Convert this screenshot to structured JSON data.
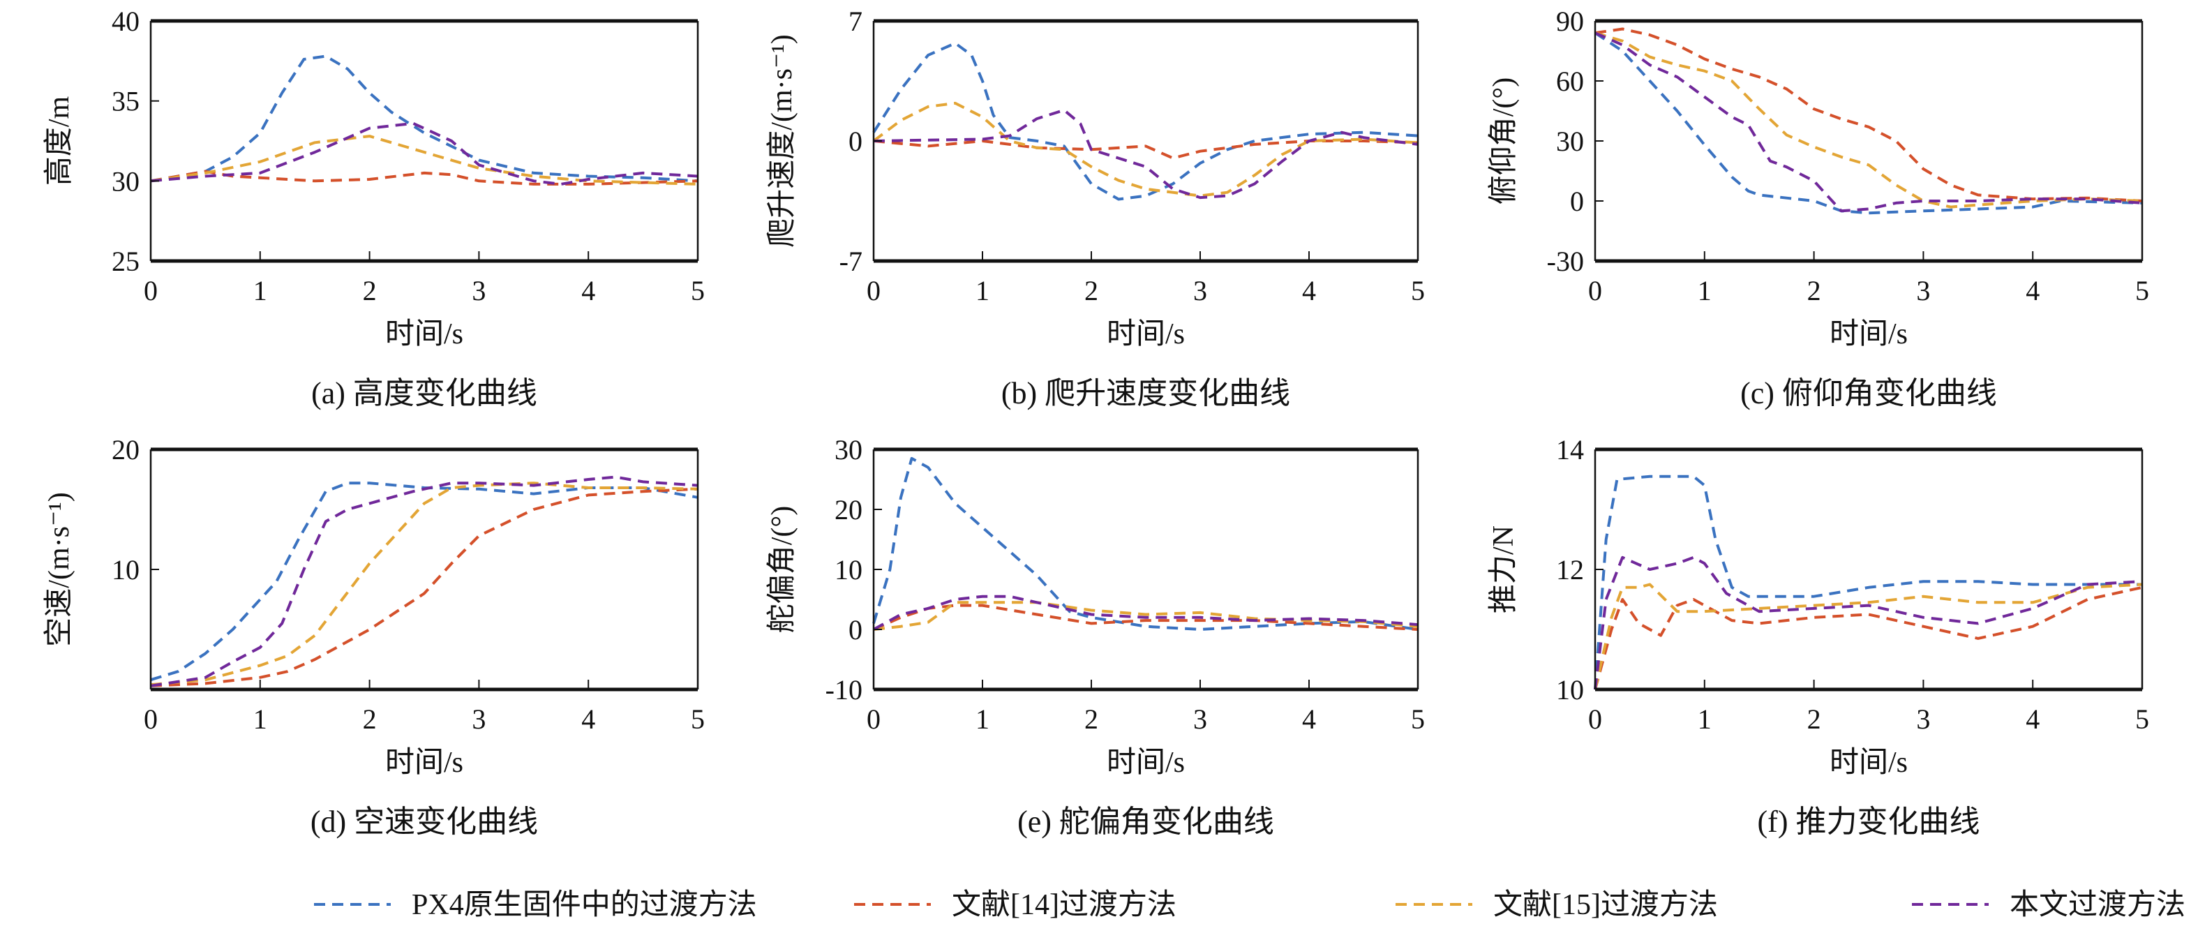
{
  "colors": {
    "px4": "#3a72c0",
    "ref14": "#d4502a",
    "ref15": "#e3a535",
    "ours": "#70289a"
  },
  "legend": [
    {
      "key": "px4",
      "label": "PX4原生固件中的过渡方法"
    },
    {
      "key": "ref14",
      "label": "文献[14]过渡方法"
    },
    {
      "key": "ref15",
      "label": "文献[15]过渡方法"
    },
    {
      "key": "ours",
      "label": "本文过渡方法"
    }
  ],
  "chart_data": [
    {
      "type": "line",
      "caption": "(a) 高度变化曲线",
      "xlabel": "时间/s",
      "ylabel": "高度/m",
      "xlim": [
        0,
        5
      ],
      "ylim": [
        25,
        40
      ],
      "xticks": [
        0,
        1,
        2,
        3,
        4,
        5
      ],
      "yticks": [
        25,
        30,
        35,
        40
      ],
      "series": [
        {
          "key": "px4",
          "x": [
            0,
            0.25,
            0.5,
            0.75,
            1,
            1.2,
            1.4,
            1.6,
            1.8,
            2,
            2.2,
            2.5,
            2.8,
            3,
            3.5,
            4,
            4.5,
            5
          ],
          "y": [
            30,
            30.3,
            30.6,
            31.5,
            33,
            35.5,
            37.6,
            37.8,
            37,
            35.5,
            34.3,
            33,
            32,
            31.3,
            30.5,
            30.3,
            30.2,
            30
          ]
        },
        {
          "key": "ref14",
          "x": [
            0,
            0.5,
            0.75,
            1,
            1.5,
            2,
            2.5,
            2.75,
            3,
            3.5,
            4,
            4.5,
            5
          ],
          "y": [
            30,
            30.6,
            30.3,
            30.2,
            30,
            30.1,
            30.5,
            30.4,
            30,
            29.8,
            29.8,
            29.9,
            30
          ]
        },
        {
          "key": "ref15",
          "x": [
            0,
            0.5,
            1,
            1.5,
            2,
            2.5,
            3,
            3.5,
            4,
            5
          ],
          "y": [
            30,
            30.5,
            31.2,
            32.4,
            32.8,
            31.8,
            30.8,
            30.3,
            30,
            29.8
          ]
        },
        {
          "key": "ours",
          "x": [
            0,
            0.5,
            1,
            1.5,
            2,
            2.4,
            2.75,
            3,
            3.5,
            3.75,
            4,
            4.5,
            5
          ],
          "y": [
            30,
            30.3,
            30.5,
            31.8,
            33.3,
            33.6,
            32.5,
            31,
            30,
            29.8,
            30.1,
            30.5,
            30.3
          ]
        }
      ]
    },
    {
      "type": "line",
      "caption": "(b) 爬升速度变化曲线",
      "xlabel": "时间/s",
      "ylabel": "爬升速度/(m·s⁻¹)",
      "xlim": [
        0,
        5
      ],
      "ylim": [
        -7,
        7
      ],
      "xticks": [
        0,
        1,
        2,
        3,
        4,
        5
      ],
      "yticks": [
        -7,
        0,
        7
      ],
      "series": [
        {
          "key": "px4",
          "x": [
            0,
            0.25,
            0.5,
            0.75,
            0.9,
            1,
            1.1,
            1.25,
            1.5,
            1.75,
            2,
            2.25,
            2.5,
            2.75,
            3,
            3.25,
            3.5,
            4,
            4.5,
            5
          ],
          "y": [
            0.5,
            3,
            5,
            5.7,
            5,
            3.5,
            1.5,
            0.2,
            0,
            -0.3,
            -2.5,
            -3.4,
            -3.2,
            -2.5,
            -1.3,
            -0.5,
            0,
            0.4,
            0.5,
            0.3
          ]
        },
        {
          "key": "ref14",
          "x": [
            0,
            0.5,
            1,
            1.5,
            2,
            2.5,
            2.75,
            3,
            3.5,
            4,
            4.5,
            5
          ],
          "y": [
            0,
            -0.3,
            0,
            -0.4,
            -0.5,
            -0.3,
            -1,
            -0.6,
            -0.2,
            0,
            0,
            -0.1
          ]
        },
        {
          "key": "ref15",
          "x": [
            0,
            0.25,
            0.5,
            0.75,
            1,
            1.25,
            1.5,
            1.75,
            2,
            2.25,
            2.5,
            3,
            3.25,
            3.5,
            3.75,
            4,
            4.5,
            5
          ],
          "y": [
            0,
            1.2,
            2,
            2.2,
            1.4,
            0,
            -0.4,
            -0.5,
            -1.5,
            -2.3,
            -2.8,
            -3.2,
            -3,
            -2,
            -0.8,
            0,
            0.1,
            -0.1
          ]
        },
        {
          "key": "ours",
          "x": [
            0,
            1,
            1.25,
            1.5,
            1.75,
            1.9,
            2,
            2.25,
            2.5,
            2.75,
            3,
            3.25,
            3.5,
            3.75,
            4,
            4.3,
            4.5,
            5
          ],
          "y": [
            0,
            0.1,
            0.3,
            1.3,
            1.8,
            1,
            -0.5,
            -1,
            -1.5,
            -2.8,
            -3.3,
            -3.2,
            -2.5,
            -1.2,
            0,
            0.5,
            0.2,
            -0.2
          ]
        }
      ]
    },
    {
      "type": "line",
      "caption": "(c) 俯仰角变化曲线",
      "xlabel": "时间/s",
      "ylabel": "俯仰角/(°)",
      "xlim": [
        0,
        5
      ],
      "ylim": [
        -30,
        90
      ],
      "xticks": [
        0,
        1,
        2,
        3,
        4,
        5
      ],
      "yticks": [
        -30,
        0,
        30,
        60,
        90
      ],
      "series": [
        {
          "key": "px4",
          "x": [
            0,
            0.25,
            0.5,
            0.75,
            1,
            1.25,
            1.4,
            1.5,
            2,
            2.25,
            2.5,
            3,
            3.5,
            4,
            4.25,
            5
          ],
          "y": [
            84,
            75,
            60,
            45,
            28,
            12,
            5,
            3,
            0,
            -5,
            -6,
            -5,
            -4,
            -3,
            0,
            -1
          ]
        },
        {
          "key": "ref14",
          "x": [
            0,
            0.25,
            0.5,
            0.75,
            1,
            1.25,
            1.5,
            1.75,
            2,
            2.25,
            2.5,
            2.75,
            3,
            3.25,
            3.5,
            4,
            4.5,
            5
          ],
          "y": [
            84,
            86,
            83,
            78,
            71,
            66,
            62,
            56,
            46,
            41,
            37,
            30,
            16,
            8,
            3,
            1,
            1.5,
            0
          ]
        },
        {
          "key": "ref15",
          "x": [
            0,
            0.25,
            0.5,
            0.75,
            1,
            1.25,
            1.5,
            1.75,
            2,
            2.25,
            2.5,
            2.75,
            3,
            3.25,
            3.5,
            4,
            4.5,
            5
          ],
          "y": [
            84,
            80,
            72,
            68,
            65,
            60,
            46,
            33,
            27,
            22,
            18,
            8,
            0,
            -3,
            -2,
            0,
            1,
            0
          ]
        },
        {
          "key": "ours",
          "x": [
            0,
            0.25,
            0.5,
            0.75,
            1,
            1.25,
            1.4,
            1.6,
            1.75,
            2,
            2.25,
            2.5,
            2.75,
            3,
            3.5,
            4,
            4.5,
            5
          ],
          "y": [
            84,
            78,
            68,
            62,
            52,
            42,
            38,
            20,
            17,
            10,
            -5,
            -4,
            -1,
            0,
            0,
            1,
            1,
            -1
          ]
        }
      ]
    },
    {
      "type": "line",
      "caption": "(d) 空速变化曲线",
      "xlabel": "时间/s",
      "ylabel": "空速/(m·s⁻¹)",
      "xlim": [
        0,
        5
      ],
      "ylim": [
        0,
        20
      ],
      "xticks": [
        0,
        1,
        2,
        3,
        4,
        5
      ],
      "yticks": [
        10,
        20
      ],
      "series": [
        {
          "key": "px4",
          "x": [
            0,
            0.25,
            0.5,
            0.75,
            1,
            1.15,
            1.35,
            1.6,
            1.8,
            2,
            2.5,
            3,
            3.5,
            4,
            4.5,
            5
          ],
          "y": [
            0.8,
            1.5,
            3,
            5,
            7.5,
            9,
            12.5,
            16.5,
            17.2,
            17.2,
            16.8,
            16.7,
            16.3,
            16.8,
            16.8,
            16
          ]
        },
        {
          "key": "ref14",
          "x": [
            0,
            0.5,
            1,
            1.25,
            1.5,
            2,
            2.5,
            2.75,
            3,
            3.5,
            4,
            4.5,
            5
          ],
          "y": [
            0.3,
            0.5,
            1,
            1.5,
            2.5,
            5,
            8,
            10.5,
            12.8,
            15,
            16.2,
            16.5,
            16.7
          ]
        },
        {
          "key": "ref15",
          "x": [
            0,
            0.5,
            1,
            1.25,
            1.5,
            1.75,
            2,
            2.25,
            2.5,
            2.75,
            3,
            3.5,
            4,
            4.5,
            5
          ],
          "y": [
            0.4,
            0.8,
            2,
            2.8,
            4.5,
            7.5,
            10.5,
            13,
            15.5,
            16.8,
            17,
            17.2,
            16.8,
            16.8,
            16.7
          ]
        },
        {
          "key": "ours",
          "x": [
            0,
            0.5,
            0.75,
            1,
            1.2,
            1.4,
            1.6,
            1.8,
            2,
            2.4,
            2.75,
            3,
            3.5,
            4,
            4.25,
            4.5,
            5
          ],
          "y": [
            0.3,
            1,
            2.3,
            3.5,
            5.5,
            10,
            14,
            15,
            15.5,
            16.5,
            17.2,
            17.2,
            17,
            17.5,
            17.7,
            17.3,
            17
          ]
        }
      ]
    },
    {
      "type": "line",
      "caption": "(e) 舵偏角变化曲线",
      "xlabel": "时间/s",
      "ylabel": "舵偏角/(°)",
      "xlim": [
        0,
        5
      ],
      "ylim": [
        -10,
        30
      ],
      "xticks": [
        0,
        1,
        2,
        3,
        4,
        5
      ],
      "yticks": [
        -10,
        0,
        10,
        20,
        30
      ],
      "series": [
        {
          "key": "px4",
          "x": [
            0,
            0.15,
            0.25,
            0.35,
            0.5,
            0.75,
            1,
            1.5,
            1.8,
            2,
            2.5,
            3,
            3.5,
            4,
            4.5,
            5
          ],
          "y": [
            1,
            10,
            22,
            28.5,
            27,
            21,
            17,
            9,
            3,
            2,
            0.5,
            0,
            0.5,
            1,
            1.3,
            0
          ]
        },
        {
          "key": "ref14",
          "x": [
            0,
            0.25,
            0.5,
            0.75,
            1,
            1.5,
            2,
            2.5,
            3,
            3.5,
            4,
            4.5,
            5
          ],
          "y": [
            0,
            2,
            3.5,
            4,
            4,
            2.5,
            1,
            1.5,
            1.5,
            1.5,
            1,
            0.5,
            0
          ]
        },
        {
          "key": "ref15",
          "x": [
            0,
            0.25,
            0.5,
            0.75,
            1,
            1.5,
            2,
            2.5,
            3,
            3.5,
            4,
            4.5,
            5
          ],
          "y": [
            0,
            0.5,
            1.2,
            4.5,
            4.5,
            4.5,
            3.2,
            2.5,
            2.8,
            1.8,
            1.5,
            1.3,
            0.5
          ]
        },
        {
          "key": "ours",
          "x": [
            0,
            0.25,
            0.5,
            0.75,
            1,
            1.25,
            1.5,
            2,
            2.5,
            3,
            3.5,
            4,
            4.5,
            5
          ],
          "y": [
            0,
            2.5,
            3.5,
            5,
            5.5,
            5.5,
            4.5,
            2.5,
            2,
            2,
            1.5,
            1.8,
            1.5,
            0.8
          ]
        }
      ]
    },
    {
      "type": "line",
      "caption": "(f) 推力变化曲线",
      "xlabel": "时间/s",
      "ylabel": "推力/N",
      "xlim": [
        0,
        5
      ],
      "ylim": [
        10,
        14
      ],
      "xticks": [
        0,
        1,
        2,
        3,
        4,
        5
      ],
      "yticks": [
        10,
        12,
        14
      ],
      "series": [
        {
          "key": "px4",
          "x": [
            0,
            0.1,
            0.2,
            0.5,
            0.9,
            1,
            1.1,
            1.25,
            1.4,
            2,
            2.5,
            3,
            3.5,
            4,
            4.5,
            5
          ],
          "y": [
            10,
            12.5,
            13.5,
            13.55,
            13.55,
            13.4,
            12.5,
            11.7,
            11.55,
            11.55,
            11.7,
            11.8,
            11.8,
            11.75,
            11.75,
            11.75
          ]
        },
        {
          "key": "ref14",
          "x": [
            0,
            0.15,
            0.25,
            0.4,
            0.6,
            0.75,
            0.9,
            1,
            1.25,
            1.5,
            2,
            2.5,
            3,
            3.5,
            4,
            4.5,
            5
          ],
          "y": [
            10,
            11,
            11.5,
            11.1,
            10.9,
            11.4,
            11.5,
            11.4,
            11.15,
            11.1,
            11.2,
            11.25,
            11.05,
            10.85,
            11.05,
            11.5,
            11.7
          ]
        },
        {
          "key": "ref15",
          "x": [
            0,
            0.15,
            0.25,
            0.4,
            0.5,
            0.75,
            1,
            1.5,
            2,
            2.5,
            3,
            3.5,
            4,
            4.5,
            5
          ],
          "y": [
            10,
            11.2,
            11.7,
            11.7,
            11.75,
            11.3,
            11.3,
            11.35,
            11.4,
            11.45,
            11.55,
            11.45,
            11.45,
            11.7,
            11.75
          ]
        },
        {
          "key": "ours",
          "x": [
            0,
            0.1,
            0.25,
            0.5,
            0.75,
            0.9,
            1,
            1.2,
            1.5,
            2,
            2.5,
            3,
            3.5,
            4,
            4.5,
            5
          ],
          "y": [
            10,
            11.5,
            12.2,
            12,
            12.1,
            12.2,
            12.1,
            11.6,
            11.3,
            11.35,
            11.4,
            11.2,
            11.1,
            11.35,
            11.75,
            11.8
          ]
        }
      ]
    }
  ]
}
